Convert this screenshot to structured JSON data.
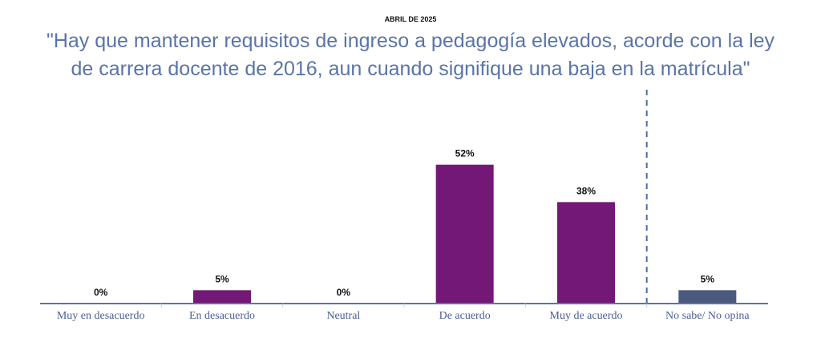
{
  "header": {
    "date": "ABRIL DE 2025",
    "title_line1": "\"Hay que mantener requisitos de ingreso a pedagogía elevados, acorde con la ley",
    "title_line2": "de carrera docente de 2016, aun cuando signifique una baja en la matrícula\""
  },
  "chart_data": {
    "type": "bar",
    "categories": [
      "Muy en desacuerdo",
      "En desacuerdo",
      "Neutral",
      "De acuerdo",
      "Muy de acuerdo",
      "No sabe/ No opina"
    ],
    "values": [
      0,
      5,
      0,
      52,
      38,
      5
    ],
    "value_labels": [
      "0%",
      "5%",
      "0%",
      "52%",
      "38%",
      "5%"
    ],
    "unit": "%",
    "ylim": [
      0,
      60
    ],
    "grid": false,
    "legend": "none",
    "separator_before_category": "No sabe/ No opina",
    "colors": {
      "main": "#741877",
      "no_opina": "#4a5a7e",
      "axis": "#5a74a8",
      "separator": "#4a6fa5"
    }
  }
}
